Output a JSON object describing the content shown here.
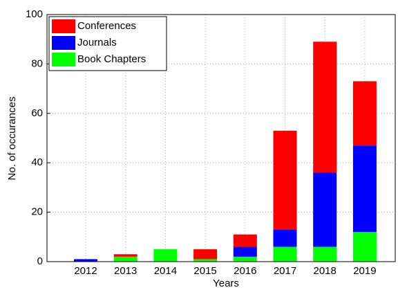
{
  "chart_data": {
    "type": "stacked_bar",
    "x_label": "Years",
    "y_label": "No. of occurances",
    "categories": [
      "2012",
      "2013",
      "2014",
      "2015",
      "2016",
      "2017",
      "2018",
      "2019"
    ],
    "series": [
      {
        "name": "Conferences",
        "color": "#ff0000",
        "values": [
          0,
          1,
          0,
          4,
          5,
          40,
          53,
          26
        ]
      },
      {
        "name": "Journals",
        "color": "#0000ff",
        "values": [
          1,
          0,
          0,
          0,
          4,
          7,
          30,
          35
        ]
      },
      {
        "name": "Book Chapters",
        "color": "#00ff00",
        "values": [
          0,
          2,
          5,
          1,
          2,
          6,
          6,
          12
        ]
      }
    ],
    "ylim": [
      0,
      100
    ],
    "yticks": [
      0,
      20,
      40,
      60,
      80,
      100
    ],
    "grid": true,
    "legend": "upper left"
  }
}
